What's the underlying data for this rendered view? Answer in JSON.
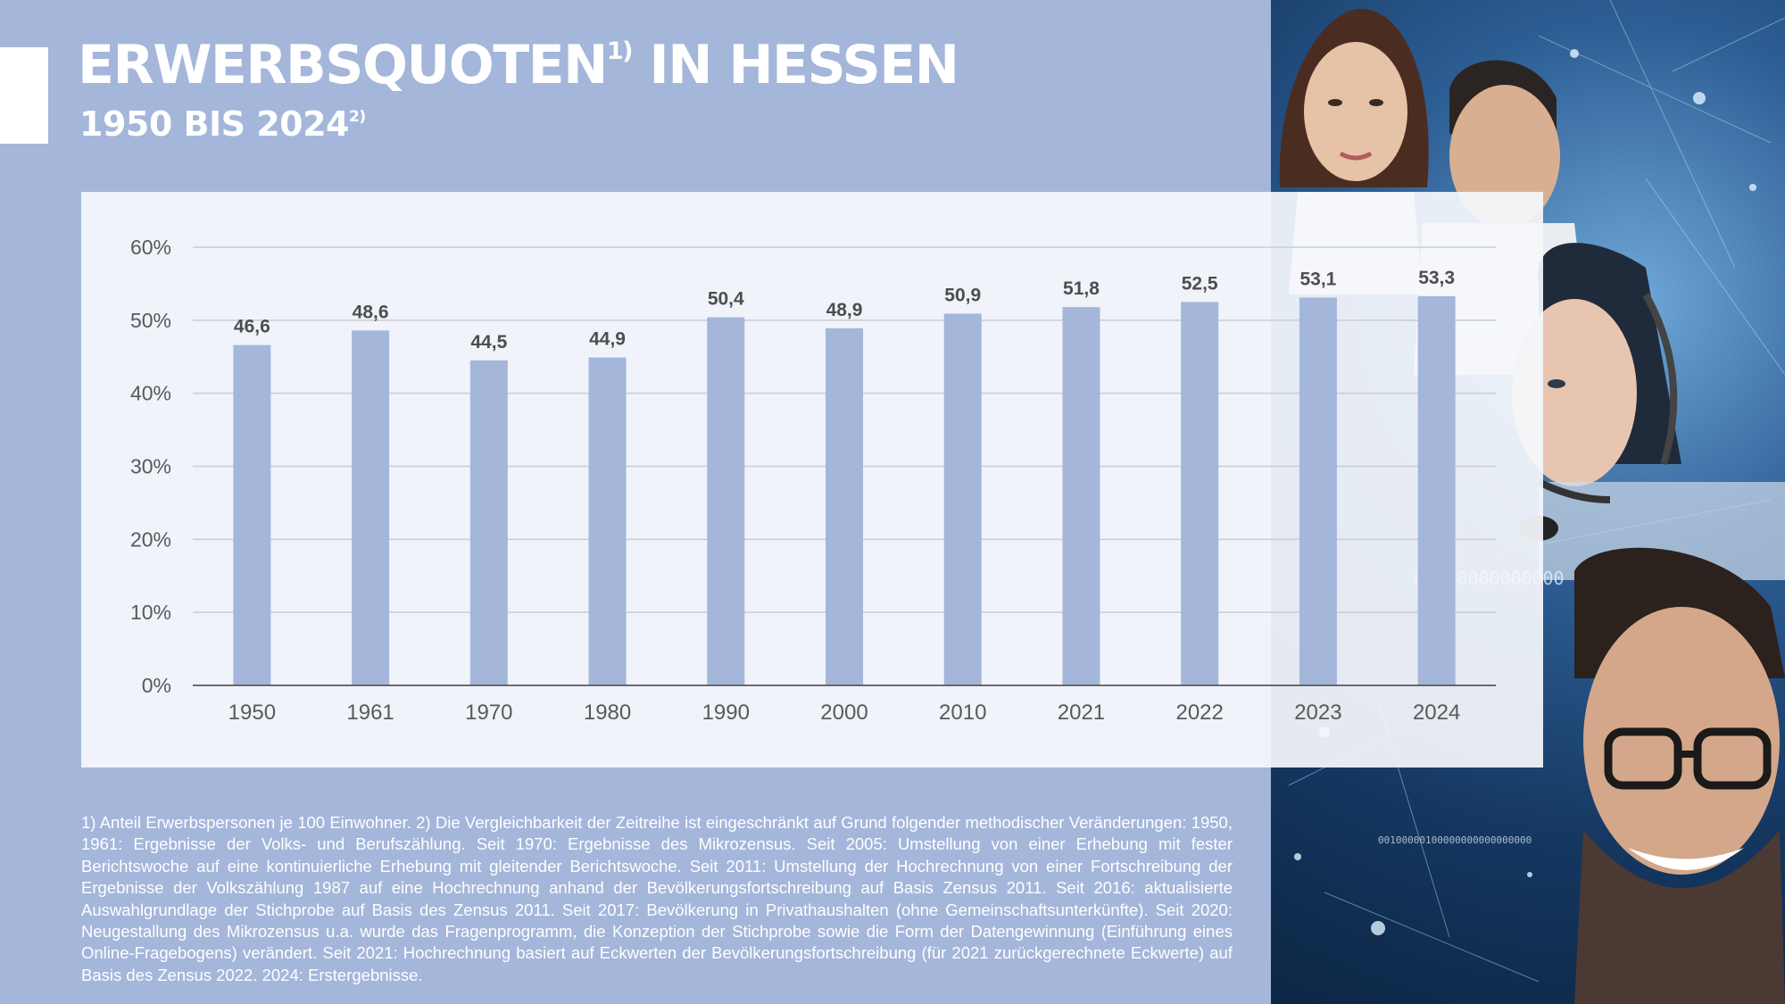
{
  "header": {
    "title": "ERWERBSQUOTEN",
    "title_sup": "1)",
    "title_suffix": " IN HESSEN",
    "subtitle": "1950 BIS 2024",
    "subtitle_sup": "2)"
  },
  "colors": {
    "background": "#a4b6da",
    "bar": "#a4b6da",
    "chart_panel": "#f5f7fc",
    "title_text": "#ffffff",
    "tick_text": "#595959",
    "label_text": "#4d4d4d"
  },
  "chart_data": {
    "type": "bar",
    "categories": [
      "1950",
      "1961",
      "1970",
      "1980",
      "1990",
      "2000",
      "2010",
      "2021",
      "2022",
      "2023",
      "2024"
    ],
    "values": [
      46.6,
      48.6,
      44.5,
      44.9,
      50.4,
      48.9,
      50.9,
      51.8,
      52.5,
      53.1,
      53.3
    ],
    "value_labels": [
      "46,6",
      "48,6",
      "44,5",
      "44,9",
      "50,4",
      "48,9",
      "50,9",
      "51,8",
      "52,5",
      "53,1",
      "53,3"
    ],
    "y_ticks": [
      "0%",
      "10%",
      "20%",
      "30%",
      "40%",
      "50%",
      "60%"
    ],
    "ylim": [
      0,
      60
    ],
    "grid": true,
    "legend": "none"
  },
  "photo": {
    "icon": "people-network-photo",
    "binary_text_1": "00100000000000",
    "binary_text_2": "00100000100000000000000000"
  },
  "footnote": "1) Anteil Erwerbspersonen je 100 Einwohner. 2) Die Vergleichbarkeit der Zeitreihe ist eingeschränkt auf Grund folgender methodischer  Verän­derungen: 1950, 1961: Ergebnisse der Volks- und Berufszählung. Seit 1970: Ergebnisse des Mikrozensus. Seit 2005: Umstellung von einer Er­hebung mit fester Berichtswoche auf eine kontinuierliche Erhebung mit gleitender Berichtswoche. Seit 2011: Umstellung der Hochrechnung von einer Fortschreibung der Ergebnisse der Volkszählung 1987 auf eine Hochrechnung anhand der Bevölkerungsfortschreibung auf Basis Zensus 2011. Seit 2016: aktualisierte Auswahlgrundlage der Stichprobe auf Basis des Zensus 2011. Seit 2017: Bevölkerung in Privathaushalten (ohne Gemeinschaftsunterkünfte). Seit 2020: Neugestallung des Mikrozensus u.a. wurde das Fragenprogramm, die Konzeption der Stichprobe sowie die Form der Datengewinnung (Einführung eines Online-Fragebogens) verändert. Seit 2021: Hochrechnung basiert auf Eckwerten der Bevölke­rungsfortschreibung (für 2021 zurückgerechnete Eckwerte) auf Basis des Zensus 2022. 2024: Erstergebnisse."
}
